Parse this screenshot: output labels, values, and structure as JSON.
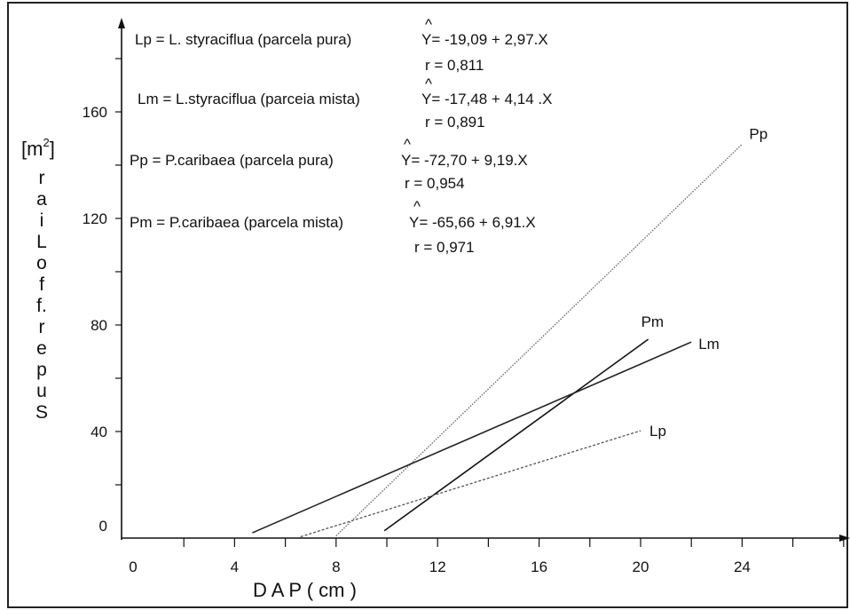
{
  "chart_data": {
    "type": "line",
    "title": "",
    "xlabel": "D A P ( cm )",
    "ylabel_unit": "(m²)",
    "ylabel_unit_parts": {
      "open": "[m",
      "sup": "2",
      "close": "]"
    },
    "ylabel_vertical": [
      "r",
      "a",
      "i",
      "L",
      "o",
      "f",
      "f.",
      "r",
      "e",
      "p",
      "u",
      "S"
    ],
    "xlim": [
      0,
      28
    ],
    "ylim": [
      0,
      180
    ],
    "x_ticks": [
      0,
      4,
      8,
      12,
      16,
      20,
      24
    ],
    "x_tick_labels": [
      "0",
      "4",
      "8",
      "12",
      "16",
      "20",
      "24"
    ],
    "y_ticks": [
      0,
      40,
      80,
      120,
      160
    ],
    "y_tick_labels": [
      "0",
      "40",
      "80",
      "120",
      "160"
    ],
    "grid": false,
    "series": [
      {
        "name": "Pp",
        "intercept": -72.7,
        "slope": 9.19,
        "x": [
          8.0,
          24.0
        ],
        "style": "dotted",
        "color": "#666666"
      },
      {
        "name": "Pm",
        "intercept": -65.66,
        "slope": 6.91,
        "x": [
          9.9,
          20.3
        ],
        "style": "solid",
        "color": "#111111"
      },
      {
        "name": "Lm",
        "intercept": -17.48,
        "slope": 4.14,
        "x": [
          4.7,
          22.0
        ],
        "style": "solid",
        "color": "#222222"
      },
      {
        "name": "Lp",
        "intercept": -19.09,
        "slope": 2.97,
        "x": [
          6.6,
          20.0
        ],
        "style": "dashed",
        "color": "#555555"
      }
    ],
    "equations": [
      {
        "lhs": "Lp  = L. styraciflua (parcela pura)",
        "hat": "^",
        "rhs": "Y= -19,09 + 2,97.X",
        "r": "r = 0,811"
      },
      {
        "lhs": "Lm = L.styraciflua (parceia mista)",
        "hat": "^",
        "rhs": "Y= -17,48 + 4,14 .X",
        "r": "r = 0,891"
      },
      {
        "lhs": "Pp = P.caribaea (parcela pura)",
        "hat": "^",
        "rhs": "Y= -72,70 + 9,19.X",
        "r": "r = 0,954"
      },
      {
        "lhs": "Pm = P.caribaea (parcela mista)",
        "hat": "^",
        "rhs": "Y= -65,66 + 6,91.X",
        "r": "r = 0,971"
      }
    ]
  }
}
